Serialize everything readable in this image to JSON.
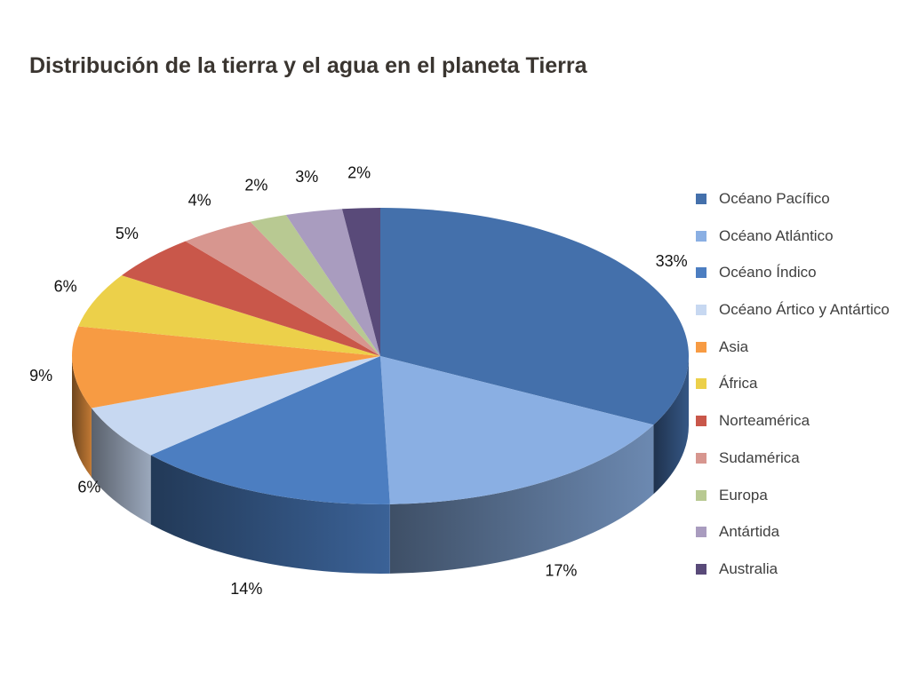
{
  "chart_data": {
    "type": "pie",
    "title": "Distribución de la tierra y el agua en el planeta Tierra",
    "legend_position": "right",
    "three_d": true,
    "slices": [
      {
        "name": "Océano Pacífico",
        "value": 33,
        "label": "33%",
        "color": "#4470ab"
      },
      {
        "name": "Océano Atlántico",
        "value": 17,
        "label": "17%",
        "color": "#8aafe3"
      },
      {
        "name": "Océano Índico",
        "value": 14,
        "label": "14%",
        "color": "#4c7ec1"
      },
      {
        "name": "Océano Ártico y Antártico",
        "value": 6,
        "label": "6%",
        "color": "#c7d8f1"
      },
      {
        "name": "Asia",
        "value": 9,
        "label": "9%",
        "color": "#f79b43"
      },
      {
        "name": "África",
        "value": 6,
        "label": "6%",
        "color": "#ecd04a"
      },
      {
        "name": "Norteamérica",
        "value": 5,
        "label": "5%",
        "color": "#c9574a"
      },
      {
        "name": "Sudamérica",
        "value": 4,
        "label": "4%",
        "color": "#d7968f"
      },
      {
        "name": "Europa",
        "value": 2,
        "label": "2%",
        "color": "#b8c992"
      },
      {
        "name": "Antártida",
        "value": 3,
        "label": "3%",
        "color": "#a99cbf"
      },
      {
        "name": "Australia",
        "value": 2,
        "label": "2%",
        "color": "#594a79"
      }
    ]
  }
}
